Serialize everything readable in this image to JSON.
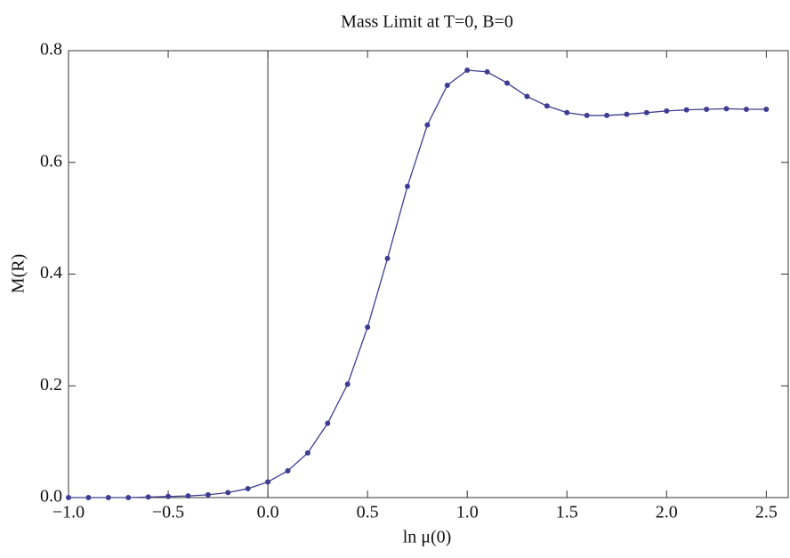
{
  "chart_data": {
    "type": "line",
    "title": "Mass Limit at T=0, B=0",
    "x_label": "ln μ(0)",
    "y_label": "M(R)",
    "x": [
      -1.0,
      -0.9,
      -0.8,
      -0.7,
      -0.6,
      -0.5,
      -0.4,
      -0.3,
      -0.2,
      -0.1,
      0.0,
      0.1,
      0.2,
      0.3,
      0.4,
      0.5,
      0.6,
      0.7,
      0.8,
      0.9,
      1.0,
      1.1,
      1.2,
      1.3,
      1.4,
      1.5,
      1.6,
      1.7,
      1.8,
      1.9,
      2.0,
      2.1,
      2.2,
      2.3,
      2.4,
      2.5
    ],
    "series": [
      {
        "color": "#3d3d91",
        "values": [
          0,
          0,
          0,
          0,
          0.001,
          0.002,
          0.003,
          0.005,
          0.009,
          0.016,
          0.028,
          0.048,
          0.08,
          0.133,
          0.203,
          0.305,
          0.428,
          0.557,
          0.667,
          0.738,
          0.765,
          0.762,
          0.742,
          0.718,
          0.701,
          0.689,
          0.684,
          0.684,
          0.686,
          0.689,
          0.692,
          0.694,
          0.695,
          0.696,
          0.695,
          0.695
        ]
      }
    ],
    "xlim": [
      -1.0,
      2.61
    ],
    "xticks": [
      {
        "value": -1.0,
        "label": "−1.0"
      },
      {
        "value": -0.5,
        "label": "−0.5"
      },
      {
        "value": 0,
        "label": "0.0"
      },
      0.5,
      {
        "value": 1,
        "label": "1.0"
      },
      1.5,
      {
        "value": 2,
        "label": "2.0"
      },
      2.5
    ],
    "ylim": [
      0,
      0.8
    ],
    "yticks": [
      {
        "value": 0,
        "label": "0.0"
      },
      0.2,
      0.4,
      0.6,
      0.8
    ]
  }
}
